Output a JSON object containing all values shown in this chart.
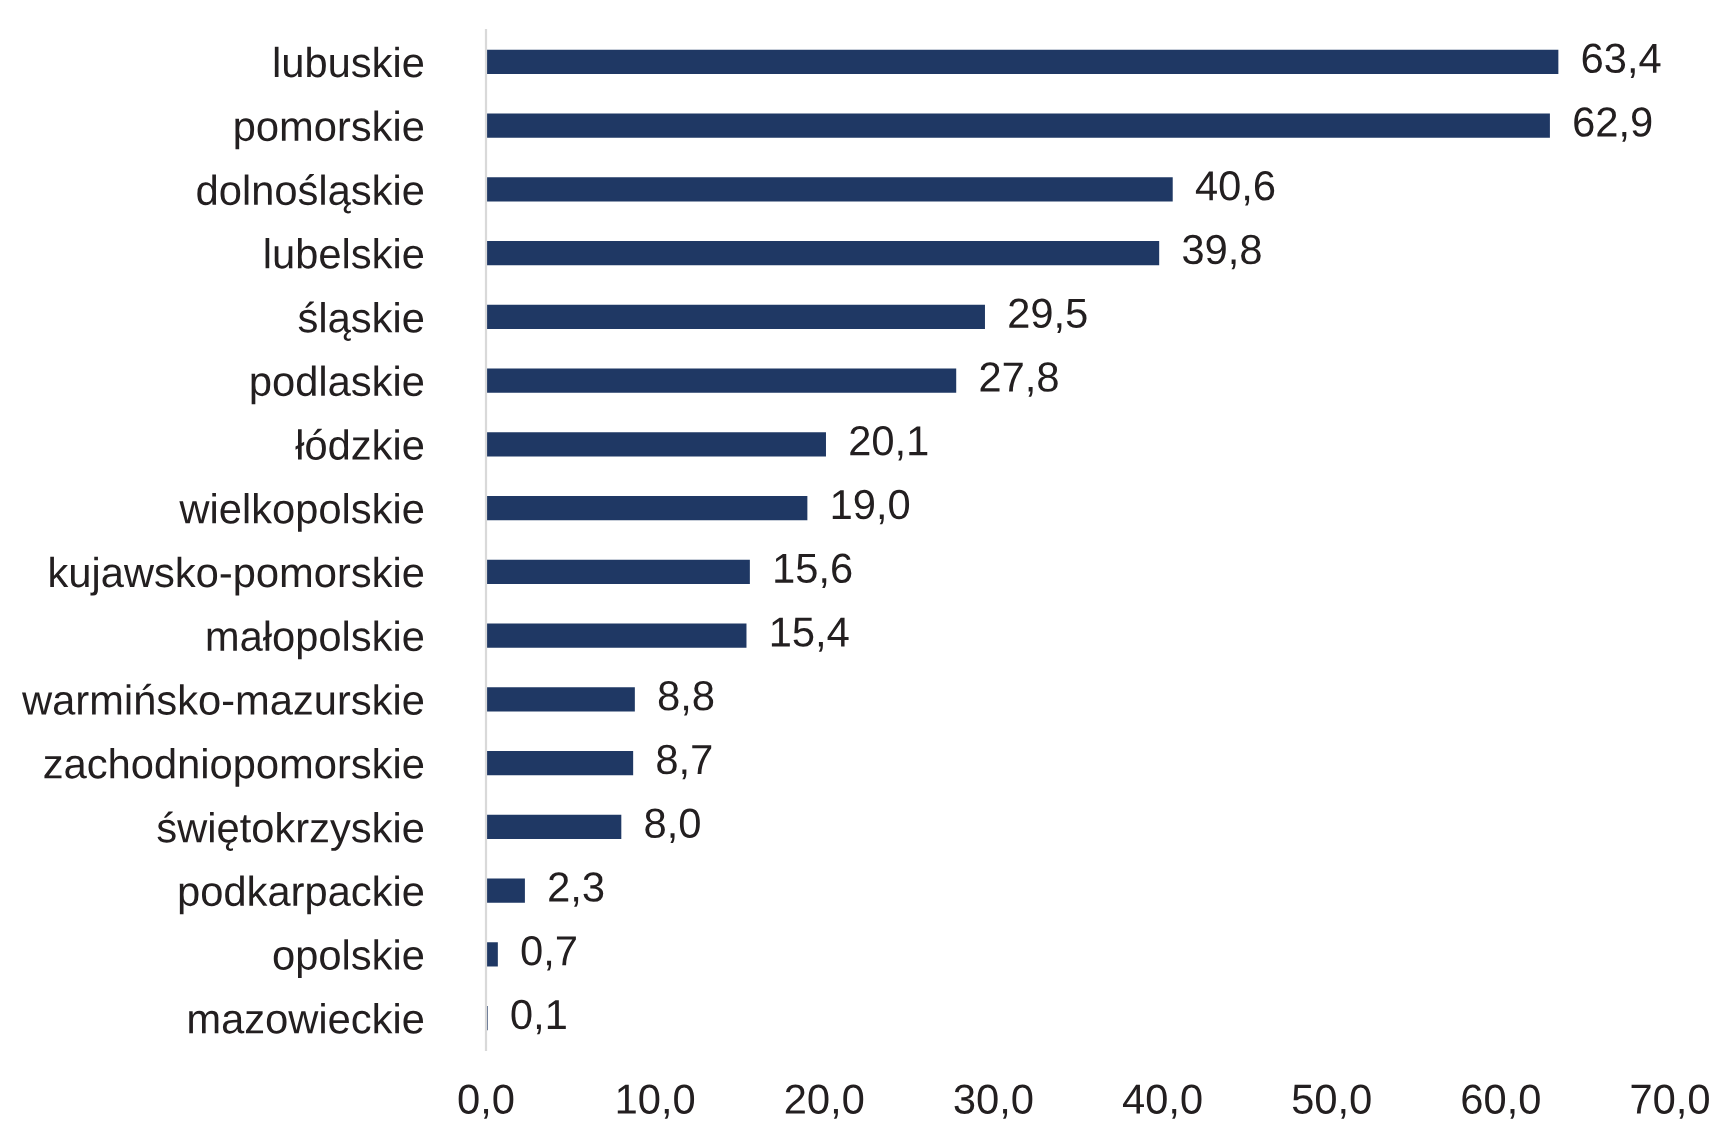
{
  "chart_data": {
    "type": "bar",
    "orientation": "horizontal",
    "categories": [
      "lubuskie",
      "pomorskie",
      "dolnośląskie",
      "lubelskie",
      "śląskie",
      "podlaskie",
      "łódzkie",
      "wielkopolskie",
      "kujawsko-pomorskie",
      "małopolskie",
      "warmińsko-mazurskie",
      "zachodniopomorskie",
      "świętokrzyskie",
      "podkarpackie",
      "opolskie",
      "mazowieckie"
    ],
    "values": [
      63.4,
      62.9,
      40.6,
      39.8,
      29.5,
      27.8,
      20.1,
      19.0,
      15.6,
      15.4,
      8.8,
      8.7,
      8.0,
      2.3,
      0.7,
      0.1
    ],
    "value_labels": [
      "63,4",
      "62,9",
      "40,6",
      "39,8",
      "29,5",
      "27,8",
      "20,1",
      "19,0",
      "15,6",
      "15,4",
      "8,8",
      "8,7",
      "8,0",
      "2,3",
      "0,7",
      "0,1"
    ],
    "color": "#1f3864",
    "xlim": [
      0,
      70
    ],
    "xticks": [
      {
        "value": 0,
        "label": "0,0"
      },
      {
        "value": 10,
        "label": "10,0"
      },
      {
        "value": 20,
        "label": "20,0"
      },
      {
        "value": 30,
        "label": "30,0"
      },
      {
        "value": 40,
        "label": "40,0"
      },
      {
        "value": 50,
        "label": "50,0"
      },
      {
        "value": 60,
        "label": "60,0"
      },
      {
        "value": 70,
        "label": "70,0"
      }
    ],
    "grid": false,
    "legend": false
  }
}
